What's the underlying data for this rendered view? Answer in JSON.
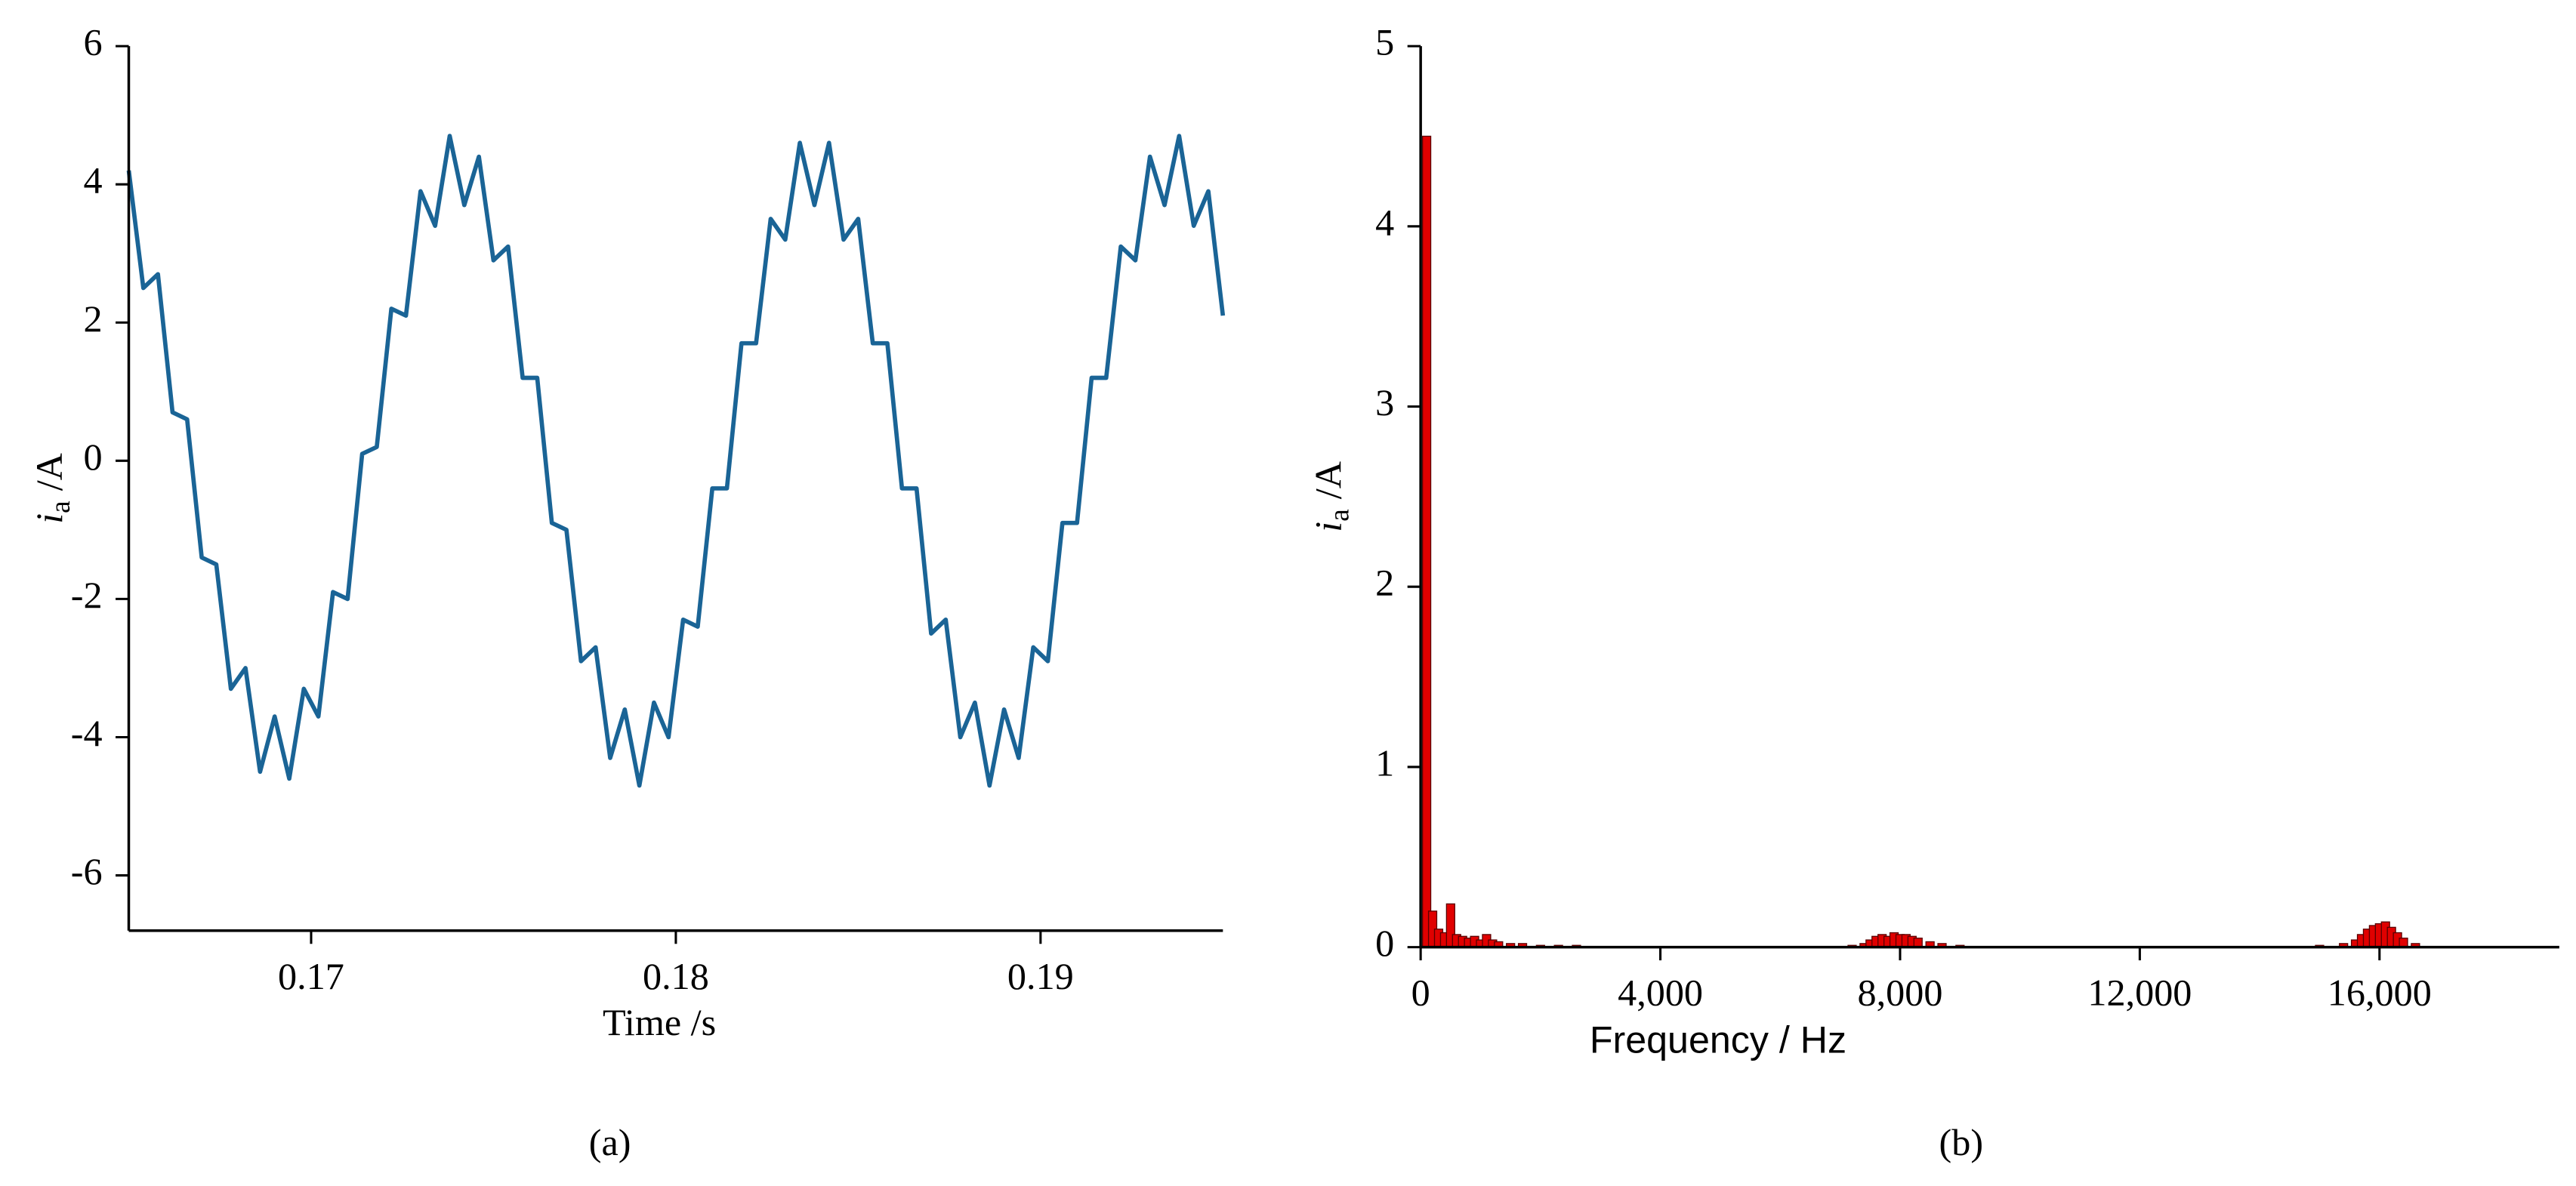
{
  "chart_data": [
    {
      "type": "line",
      "xlabel": "Time /s",
      "ylabel": {
        "symbol": "i",
        "subscript": "a",
        "unit": "/A"
      },
      "caption": "(a)",
      "color": "#1a6496",
      "xlim": [
        0.165,
        0.195
      ],
      "xticks": [
        0.17,
        0.18,
        0.19
      ],
      "ylim": [
        -6.8,
        6
      ],
      "yticks": [
        -6,
        -4,
        -2,
        0,
        2,
        4,
        6
      ],
      "x": [
        0.165,
        0.1654,
        0.1658,
        0.1662,
        0.1666,
        0.167,
        0.1674,
        0.1678,
        0.1682,
        0.1686,
        0.169,
        0.1694,
        0.1698,
        0.1702,
        0.1706,
        0.171,
        0.1714,
        0.1718,
        0.1722,
        0.1726,
        0.173,
        0.1734,
        0.1738,
        0.1742,
        0.1746,
        0.175,
        0.1754,
        0.1758,
        0.1762,
        0.1766,
        0.177,
        0.1774,
        0.1778,
        0.1782,
        0.1786,
        0.179,
        0.1794,
        0.1798,
        0.1802,
        0.1806,
        0.181,
        0.1814,
        0.1818,
        0.1822,
        0.1826,
        0.183,
        0.1834,
        0.1838,
        0.1842,
        0.1846,
        0.185,
        0.1854,
        0.1858,
        0.1862,
        0.1866,
        0.187,
        0.1874,
        0.1878,
        0.1882,
        0.1886,
        0.189,
        0.1894,
        0.1898,
        0.1902,
        0.1906,
        0.191,
        0.1914,
        0.1918,
        0.1922,
        0.1926,
        0.193,
        0.1934,
        0.1938,
        0.1942,
        0.1946,
        0.195
      ],
      "values": [
        4.2,
        2.5,
        2.7,
        0.7,
        0.6,
        -1.4,
        -1.5,
        -3.3,
        -3.0,
        -4.5,
        -3.7,
        -4.6,
        -3.3,
        -3.7,
        -1.9,
        -2.0,
        0.1,
        0.2,
        2.2,
        2.1,
        3.9,
        3.4,
        4.7,
        3.7,
        4.4,
        2.9,
        3.1,
        1.2,
        1.2,
        -0.9,
        -1.0,
        -2.9,
        -2.7,
        -4.3,
        -3.6,
        -4.7,
        -3.5,
        -4.0,
        -2.3,
        -2.4,
        -0.4,
        -0.4,
        1.7,
        1.7,
        3.5,
        3.2,
        4.6,
        3.7,
        4.6,
        3.2,
        3.5,
        1.7,
        1.7,
        -0.4,
        -0.4,
        -2.5,
        -2.3,
        -4.0,
        -3.5,
        -4.7,
        -3.6,
        -4.3,
        -2.7,
        -2.9,
        -0.9,
        -0.9,
        1.2,
        1.2,
        3.1,
        2.9,
        4.4,
        3.7,
        4.7,
        3.4,
        3.9,
        2.1
      ]
    },
    {
      "type": "bar",
      "xlabel": "Frequency / Hz",
      "ylabel": {
        "symbol": "i",
        "subscript": "a",
        "unit": "/A"
      },
      "caption": "(b)",
      "color": "#e00000",
      "xlim": [
        0,
        19000
      ],
      "xticks": [
        0,
        {
          "value": 4000,
          "label": "4,000"
        },
        {
          "value": 8000,
          "label": "8,000"
        },
        {
          "value": 12000,
          "label": "12,000"
        },
        {
          "value": 16000,
          "label": "16,000"
        }
      ],
      "ylim": [
        0,
        5
      ],
      "yticks": [
        0,
        1,
        2,
        3,
        4,
        5
      ],
      "x": [
        100,
        200,
        300,
        400,
        500,
        600,
        700,
        800,
        900,
        1000,
        1100,
        1200,
        1300,
        1500,
        1700,
        2000,
        2300,
        2600,
        7200,
        7400,
        7500,
        7600,
        7700,
        7800,
        7900,
        8000,
        8100,
        8200,
        8300,
        8500,
        8700,
        9000,
        15000,
        15400,
        15600,
        15700,
        15800,
        15900,
        16000,
        16100,
        16200,
        16300,
        16400,
        16600
      ],
      "values": [
        4.5,
        0.2,
        0.1,
        0.08,
        0.24,
        0.07,
        0.06,
        0.05,
        0.06,
        0.04,
        0.07,
        0.04,
        0.03,
        0.02,
        0.02,
        0.01,
        0.01,
        0.01,
        0.01,
        0.02,
        0.04,
        0.06,
        0.07,
        0.06,
        0.08,
        0.07,
        0.07,
        0.06,
        0.05,
        0.03,
        0.02,
        0.01,
        0.01,
        0.02,
        0.04,
        0.07,
        0.1,
        0.12,
        0.13,
        0.14,
        0.11,
        0.08,
        0.05,
        0.02
      ]
    }
  ]
}
